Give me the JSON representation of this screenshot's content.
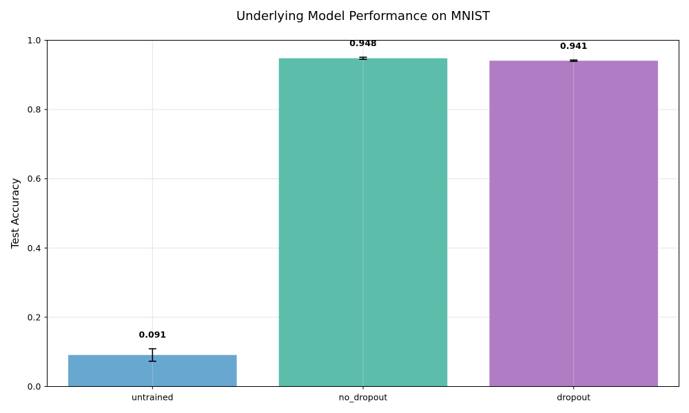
{
  "chart_data": {
    "type": "bar",
    "title": "Underlying Model Performance on MNIST",
    "xlabel": "",
    "ylabel": "Test Accuracy",
    "ylim": [
      0,
      1.0
    ],
    "yticks": [
      "0.0",
      "0.2",
      "0.4",
      "0.6",
      "0.8",
      "1.0"
    ],
    "grid": true,
    "categories": [
      "untrained",
      "no_dropout",
      "dropout"
    ],
    "values": [
      0.091,
      0.948,
      0.941
    ],
    "value_labels": [
      "0.091",
      "0.948",
      "0.941"
    ],
    "errors": [
      0.018,
      0.003,
      0.002
    ],
    "colors": [
      "#68a7cf",
      "#5cbdab",
      "#b07dc4"
    ]
  }
}
